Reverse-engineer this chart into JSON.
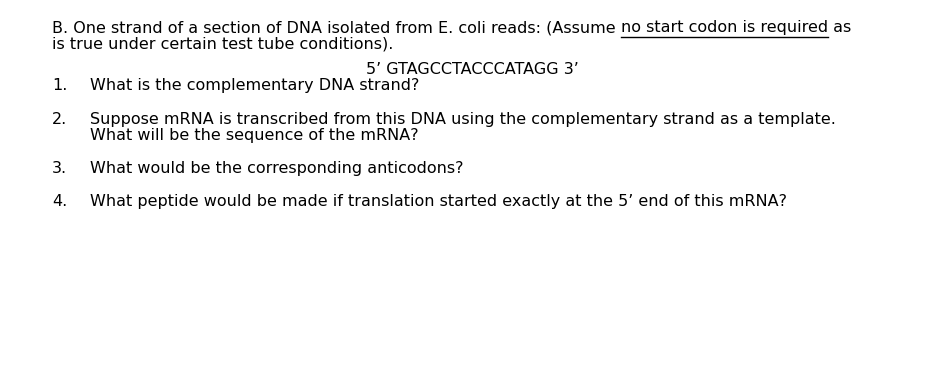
{
  "background_color": "#ffffff",
  "figsize": [
    9.45,
    3.69
  ],
  "dpi": 100,
  "header_line1_normal": "B. One strand of a section of DNA isolated from E. coli reads: (Assume ",
  "header_line1_underline": "no start codon is required",
  "header_line1_after": " as",
  "header_line2": "is true under certain test tube conditions).",
  "dna_line": "5’ GTAGCCTACCCATAGG 3’",
  "q1_num": "1.",
  "q1_text": "What is the complementary DNA strand?",
  "q2_num": "2.",
  "q2a_text": "Suppose mRNA is transcribed from this DNA using the complementary strand as a template.",
  "q2b_text": "What will be the sequence of the mRNA?",
  "q3_num": "3.",
  "q3_text": "What would be the corresponding anticodons?",
  "q4_num": "4.",
  "q4_text": "What peptide would be made if translation started exactly at the 5’ end of this mRNA?",
  "font_size": 11.5,
  "font_family": "DejaVu Sans",
  "text_color": "#000000",
  "num_indent": 0.055,
  "text_indent": 0.095
}
